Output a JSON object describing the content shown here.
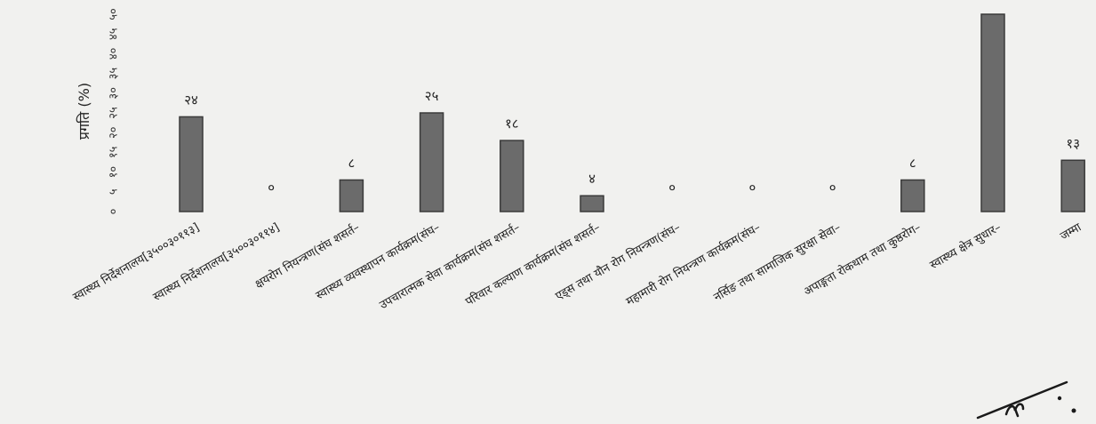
{
  "chart_data": {
    "type": "bar",
    "title": "",
    "xlabel": "",
    "ylabel": "प्रगति (%)",
    "ylim": [
      0,
      50
    ],
    "yticks": [
      "०",
      "५",
      "१०",
      "१५",
      "२०",
      "२५",
      "३०",
      "३५",
      "४०",
      "४५",
      "५०"
    ],
    "grid": false,
    "categories": [
      "स्वास्थ्य निर्देशनालय[३५००३०११३]",
      "स्वास्थ्य निर्देशनालय[३५००३०११४]",
      "क्षयरोग नियन्त्रण(संघ शसर्त–",
      "स्वास्थ्य व्यवस्थापन कार्यक्रम(संघ–",
      "उपचारात्मक सेवा कार्यक्रम(संघ शसर्त–",
      "परिवार कल्याण कार्यक्रम(संघ शसर्त–",
      "एड्स तथा यौन रोग नियन्त्रण(संघ–",
      "महामारी रोग नियन्त्रण कार्यक्रम(संघ–",
      "नर्सिङ तथा सामाजिक सुरक्षा सेवा–",
      "अपाङ्गता रोकथाम तथा कुष्ठरोग–",
      "स्वास्थ्य क्षेत्र सुधार–",
      "जम्मा"
    ],
    "values": [
      24,
      0,
      8,
      25,
      18,
      4,
      0,
      0,
      0,
      8,
      50,
      13
    ],
    "data_labels": [
      "२४",
      "०",
      "८",
      "२५",
      "१८",
      "४",
      "०",
      "०",
      "०",
      "८",
      "",
      "१३"
    ]
  }
}
